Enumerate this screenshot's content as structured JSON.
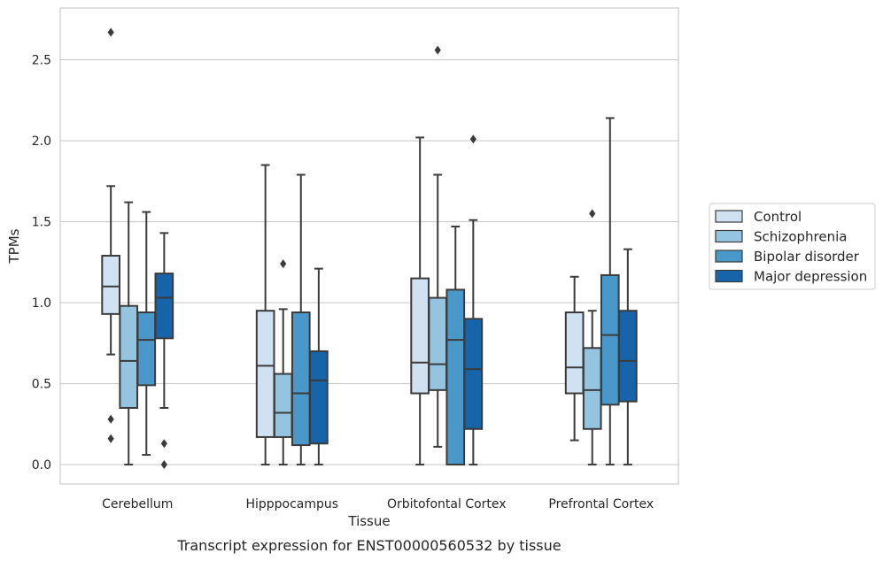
{
  "chart_data": {
    "type": "box",
    "caption": "Transcript expression for ENST00000560532 by tissue",
    "xlabel": "Tissue",
    "ylabel": "TPMs",
    "ylim": [
      -0.12,
      2.82
    ],
    "yticks": [
      0.0,
      0.5,
      1.0,
      1.5,
      2.0,
      2.5
    ],
    "ytick_labels": [
      "0.0",
      "0.5",
      "1.0",
      "1.5",
      "2.0",
      "2.5"
    ],
    "grid": true,
    "legend_position": "right",
    "categories": [
      "Cerebellum",
      "Hipppocampus",
      "Orbitofontal Cortex",
      "Prefrontal Cortex"
    ],
    "series": [
      {
        "name": "Control",
        "color": "#d0e1f2",
        "boxes": [
          {
            "whislo": 0.68,
            "q1": 0.93,
            "med": 1.1,
            "q3": 1.29,
            "whishi": 1.72,
            "fliers": [
              0.28,
              0.16,
              2.67
            ]
          },
          {
            "whislo": 0.0,
            "q1": 0.17,
            "med": 0.61,
            "q3": 0.95,
            "whishi": 1.85,
            "fliers": []
          },
          {
            "whislo": 0.0,
            "q1": 0.44,
            "med": 0.63,
            "q3": 1.15,
            "whishi": 2.02,
            "fliers": []
          },
          {
            "whislo": 0.15,
            "q1": 0.44,
            "med": 0.6,
            "q3": 0.94,
            "whishi": 1.16,
            "fliers": []
          }
        ]
      },
      {
        "name": "Schizophrenia",
        "color": "#94c4df",
        "boxes": [
          {
            "whislo": 0.0,
            "q1": 0.35,
            "med": 0.64,
            "q3": 0.98,
            "whishi": 1.62,
            "fliers": []
          },
          {
            "whislo": 0.0,
            "q1": 0.17,
            "med": 0.32,
            "q3": 0.56,
            "whishi": 0.96,
            "fliers": [
              1.24
            ]
          },
          {
            "whislo": 0.11,
            "q1": 0.46,
            "med": 0.62,
            "q3": 1.03,
            "whishi": 1.79,
            "fliers": [
              2.56
            ]
          },
          {
            "whislo": 0.0,
            "q1": 0.22,
            "med": 0.46,
            "q3": 0.72,
            "whishi": 0.95,
            "fliers": [
              1.55
            ]
          }
        ]
      },
      {
        "name": "Bipolar disorder",
        "color": "#4a98c9",
        "boxes": [
          {
            "whislo": 0.06,
            "q1": 0.49,
            "med": 0.77,
            "q3": 0.94,
            "whishi": 1.56,
            "fliers": []
          },
          {
            "whislo": 0.0,
            "q1": 0.12,
            "med": 0.44,
            "q3": 0.94,
            "whishi": 1.79,
            "fliers": []
          },
          {
            "whislo": 0.0,
            "q1": 0.0,
            "med": 0.77,
            "q3": 1.08,
            "whishi": 1.47,
            "fliers": []
          },
          {
            "whislo": 0.0,
            "q1": 0.37,
            "med": 0.8,
            "q3": 1.17,
            "whishi": 2.14,
            "fliers": []
          }
        ]
      },
      {
        "name": "Major depression",
        "color": "#1764ab",
        "boxes": [
          {
            "whislo": 0.35,
            "q1": 0.78,
            "med": 1.03,
            "q3": 1.18,
            "whishi": 1.43,
            "fliers": [
              0.13,
              0.0
            ]
          },
          {
            "whislo": 0.0,
            "q1": 0.13,
            "med": 0.52,
            "q3": 0.7,
            "whishi": 1.21,
            "fliers": []
          },
          {
            "whislo": 0.0,
            "q1": 0.22,
            "med": 0.59,
            "q3": 0.9,
            "whishi": 1.51,
            "fliers": [
              2.01
            ]
          },
          {
            "whislo": 0.0,
            "q1": 0.39,
            "med": 0.64,
            "q3": 0.95,
            "whishi": 1.33,
            "fliers": []
          }
        ]
      }
    ]
  }
}
